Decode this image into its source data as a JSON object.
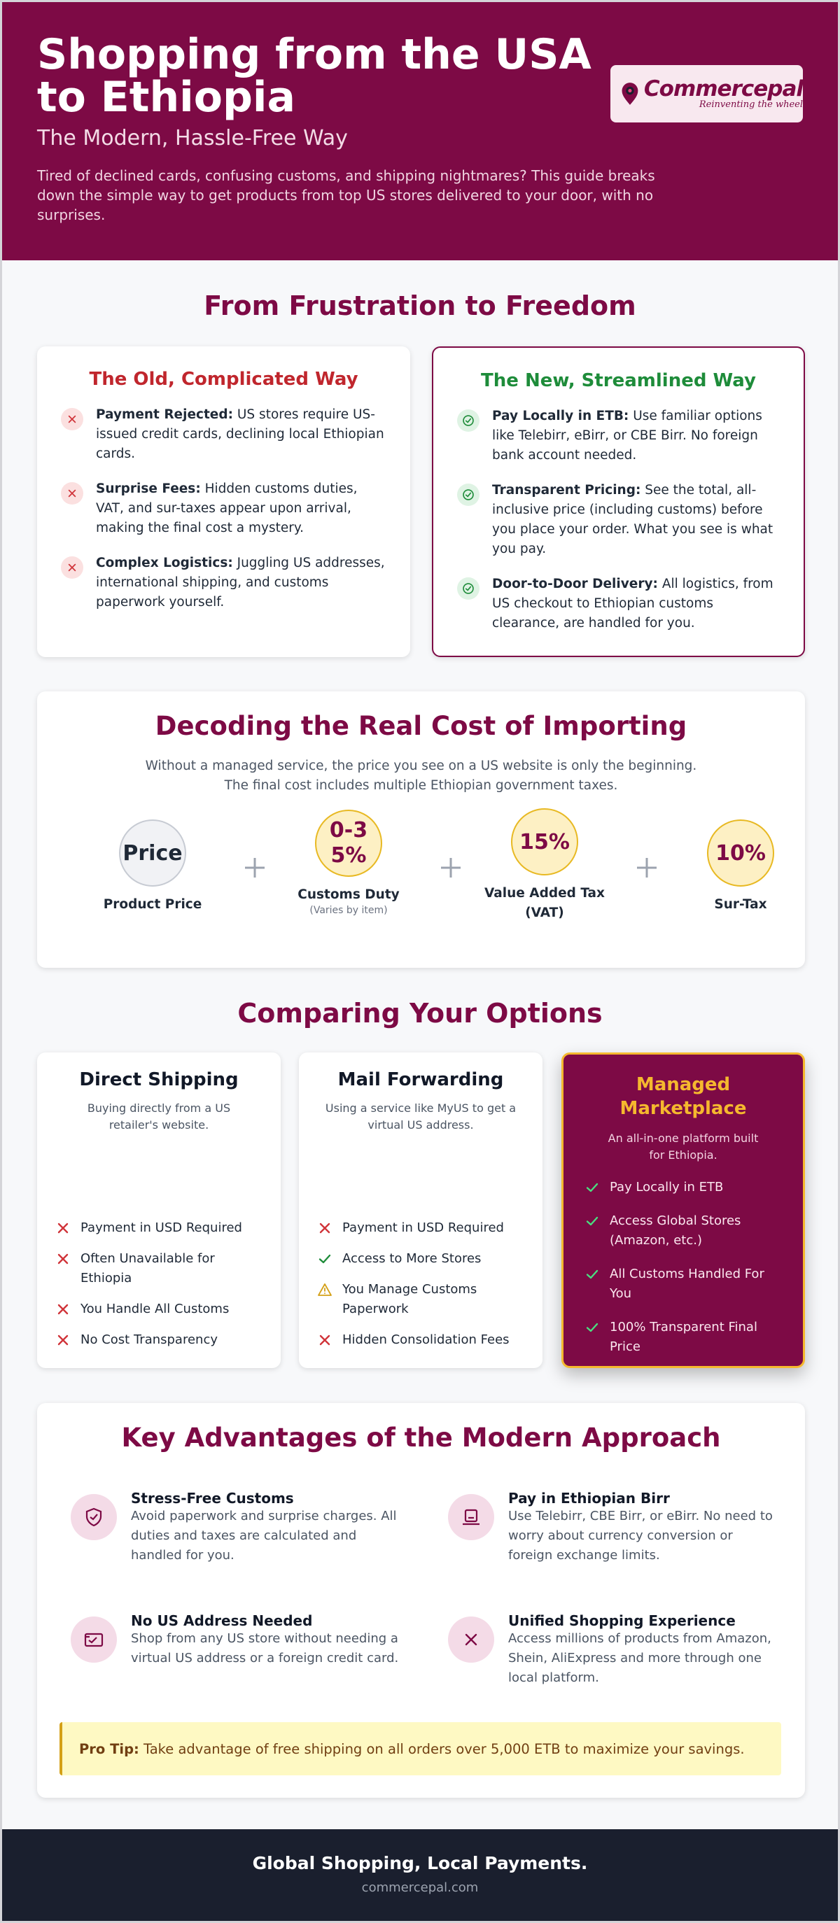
{
  "header": {
    "title": "Shopping from the USA to Ethiopia",
    "subtitle": "The Modern, Hassle-Free Way",
    "intro": "Tired of declined cards, confusing customs, and shipping nightmares? This guide breaks down the simple way to get products from top US stores delivered to your door, with no surprises.",
    "logo": {
      "name": "Commercepal",
      "tagline": "Reinventing the wheel"
    }
  },
  "comparison": {
    "title": "From Frustration to Freedom",
    "old": {
      "title": "The Old, Complicated Way",
      "items": [
        {
          "label": "Payment Rejected:",
          "text": "US stores require US-issued credit cards, declining local Ethiopian cards."
        },
        {
          "label": "Surprise Fees:",
          "text": "Hidden customs duties, VAT, and sur-taxes appear upon arrival, making the final cost a mystery."
        },
        {
          "label": "Complex Logistics:",
          "text": "Juggling US addresses, international shipping, and customs paperwork yourself."
        }
      ]
    },
    "new": {
      "title": "The New, Streamlined Way",
      "items": [
        {
          "label": "Pay Locally in ETB:",
          "text": "Use familiar options like Telebirr, eBirr, or CBE Birr. No foreign bank account needed."
        },
        {
          "label": "Transparent Pricing:",
          "text": "See the total, all-inclusive price (including customs) before you place your order. What you see is what you pay."
        },
        {
          "label": "Door-to-Door Delivery:",
          "text": "All logistics, from US checkout to Ethiopian customs clearance, are handled for you."
        }
      ]
    }
  },
  "cost": {
    "title": "Decoding the Real Cost of Importing",
    "intro": "Without a managed service, the price you see on a US website is only the beginning. The final cost includes multiple Ethiopian government taxes.",
    "items": [
      {
        "value": "Price",
        "label": "Product Price"
      },
      {
        "value": "0-35%",
        "label": "Customs Duty",
        "note": "(Varies by item)"
      },
      {
        "value": "15%",
        "label": "Value Added Tax (VAT)"
      },
      {
        "value": "10%",
        "label": "Sur-Tax"
      }
    ]
  },
  "options": {
    "title": "Comparing Your Options",
    "cards": [
      {
        "title": "Direct Shipping",
        "description": "Buying directly from a US retailer's website.",
        "features": [
          "Payment in USD Required",
          "Often Unavailable for Ethiopia",
          "You Handle All Customs",
          "No Cost Transparency"
        ]
      },
      {
        "title": "Mail Forwarding",
        "description": "Using a service like MyUS to get a virtual US address.",
        "features": [
          "Payment in USD Required",
          "Access to More Stores",
          "You Manage Customs Paperwork",
          "Hidden Consolidation Fees"
        ]
      },
      {
        "title": "Managed Marketplace",
        "description": "An all-in-one platform built for Ethiopia.",
        "features": [
          "Pay Locally in ETB",
          "Access Global Stores (Amazon, etc.)",
          "All Customs Handled For You",
          "100% Transparent Final Price"
        ]
      }
    ]
  },
  "advantages": {
    "title": "Key Advantages of the Modern Approach",
    "items": [
      {
        "title": "Stress-Free Customs",
        "text": "Avoid paperwork and surprise charges. All duties and taxes are calculated and handled for you."
      },
      {
        "title": "Pay in Ethiopian Birr",
        "text": "Use Telebirr, CBE Birr, or eBirr. No need to worry about currency conversion or foreign exchange limits."
      },
      {
        "title": "No US Address Needed",
        "text": "Shop from any US store without needing a virtual US address or a foreign credit card."
      },
      {
        "title": "Unified Shopping Experience",
        "text": "Access millions of products from Amazon, Shein, AliExpress and more through one local platform."
      }
    ],
    "tip": {
      "label": "Pro Tip:",
      "text": "Take advantage of free shipping on all orders over 5,000 ETB to maximize your savings."
    }
  },
  "footer": {
    "tagline": "Global Shopping, Local Payments.",
    "url": "commercepal.com"
  }
}
